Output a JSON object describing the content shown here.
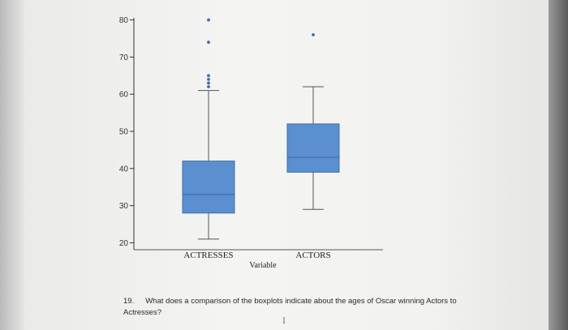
{
  "chart_data": {
    "type": "boxplot",
    "xlabel": "Variable",
    "ylabel": "",
    "ylim": [
      19,
      81
    ],
    "yticks": [
      20,
      30,
      40,
      50,
      60,
      70,
      80
    ],
    "categories": [
      "ACTRESSES",
      "ACTORS"
    ],
    "boxes": [
      {
        "category": "ACTRESSES",
        "whisker_low": 21,
        "q1": 28,
        "median": 33,
        "q3": 42,
        "whisker_high": 61,
        "outliers": [
          62,
          63,
          64,
          65,
          74,
          80
        ]
      },
      {
        "category": "ACTORS",
        "whisker_low": 29,
        "q1": 39,
        "median": 43,
        "q3": 52,
        "whisker_high": 62,
        "outliers": [
          76
        ]
      }
    ],
    "box_color": "#5b8fd0",
    "box_edge_color": "#3f6ea8",
    "grid": false
  },
  "question": {
    "number": "19.",
    "text": "What does a comparison of the boxplots indicate about the ages of Oscar winning Actors to Actresses?"
  },
  "cursor_glyph": "I"
}
